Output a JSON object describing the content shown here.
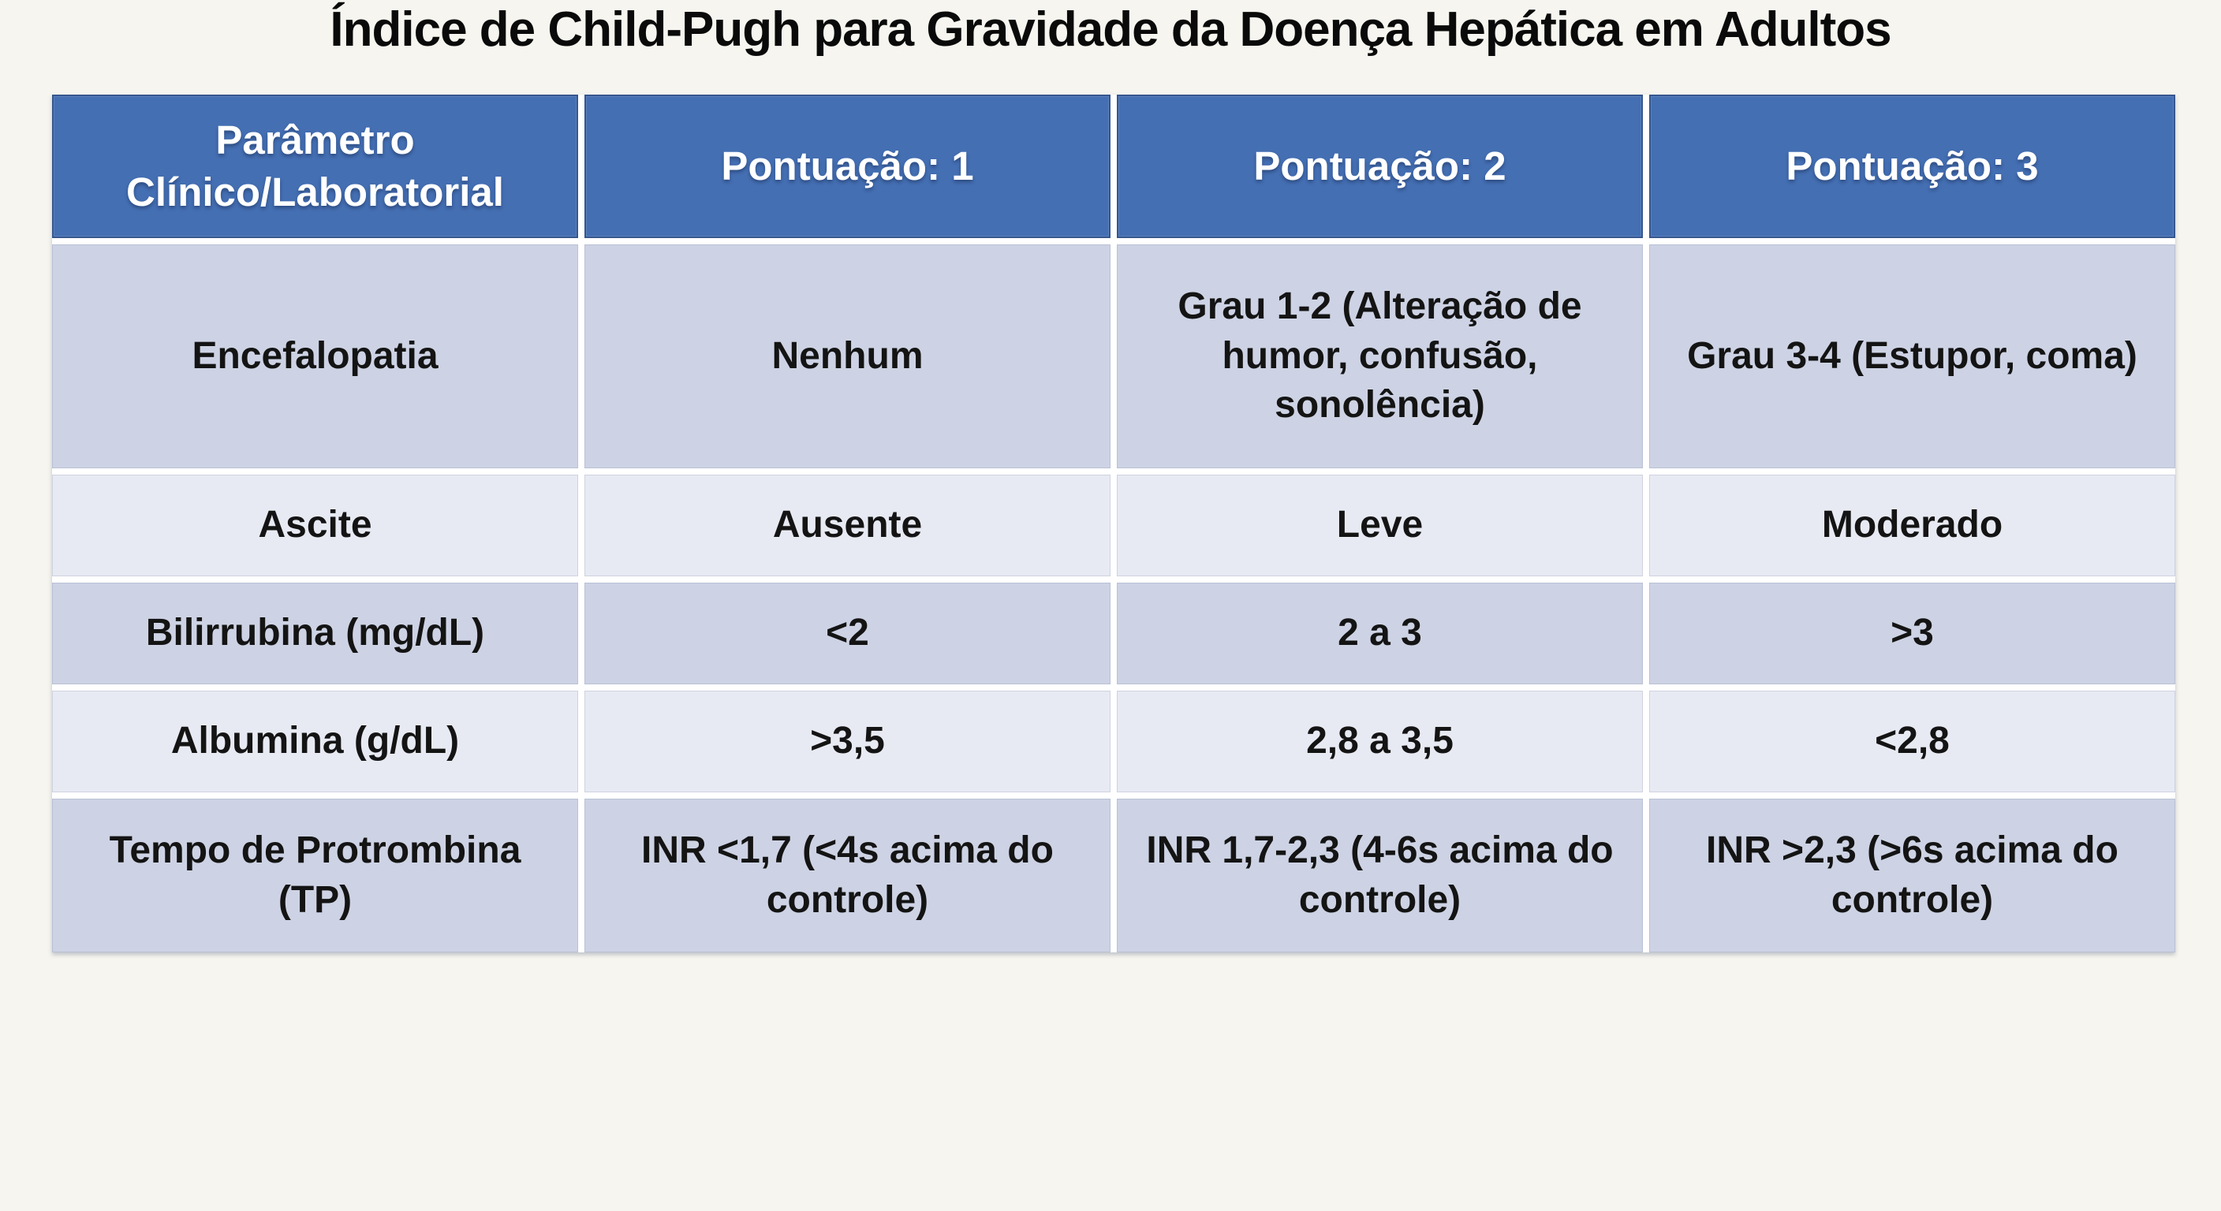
{
  "theme": {
    "page_bg": "#f6f5ef",
    "grid_line": "#ffffff",
    "header_bg": "#446fb3",
    "header_border": "#35568e",
    "header_text": "#ffffff",
    "row_bg_dark": "#cdd3e4",
    "row_bg_light": "#e8eaf3",
    "cell_text": "#141414",
    "title_text": "#0a0a0a"
  },
  "chart_data": {
    "type": "table",
    "title": "Índice de Child-Pugh para Gravidade da Doença Hepática em Adultos",
    "columns": [
      "Parâmetro Clínico/Laboratorial",
      "Pontuação: 1",
      "Pontuação: 2",
      "Pontuação: 3"
    ],
    "rows": [
      [
        "Encefalopatia",
        "Nenhum",
        "Grau 1-2 (Alteração de humor, confusão, sonolência)",
        "Grau 3-4 (Estupor, coma)"
      ],
      [
        "Ascite",
        "Ausente",
        "Leve",
        "Moderado"
      ],
      [
        "Bilirrubina (mg/dL)",
        "<2",
        "2 a 3",
        ">3"
      ],
      [
        "Albumina (g/dL)",
        ">3,5",
        "2,8 a 3,5",
        "<2,8"
      ],
      [
        "Tempo de Protrombina (TP)",
        "INR <1,7 (<4s acima do controle)",
        "INR 1,7-2,3 (4-6s acima do controle)",
        "INR >2,3 (>6s acima do controle)"
      ]
    ],
    "row_banding": [
      "dark",
      "light",
      "dark",
      "light",
      "dark"
    ],
    "layout": {
      "columns_equal_width": true,
      "header_row": true,
      "gridlines": "white"
    }
  }
}
